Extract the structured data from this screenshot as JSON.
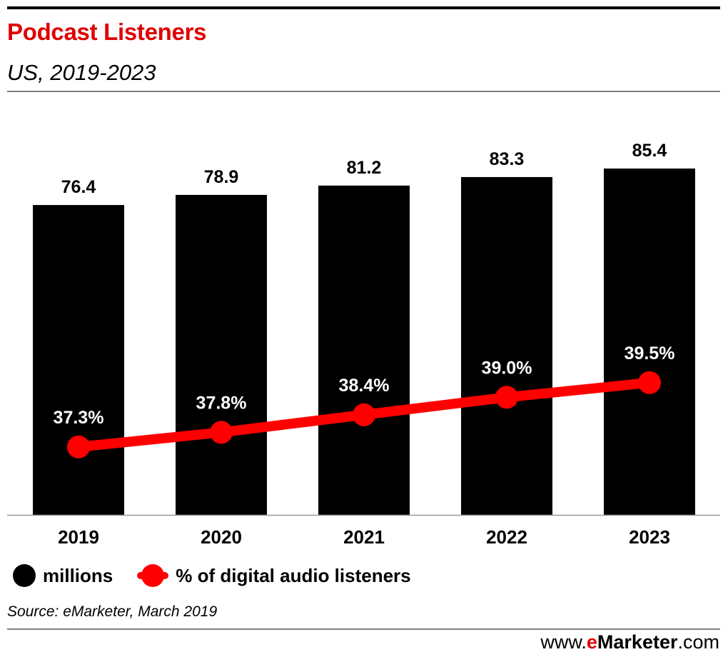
{
  "header": {
    "title": "Podcast Listeners",
    "subtitle": "US, 2019-2023"
  },
  "chart_data": {
    "type": "bar",
    "title": "Podcast Listeners",
    "subtitle": "US, 2019-2023",
    "categories": [
      "2019",
      "2020",
      "2021",
      "2022",
      "2023"
    ],
    "series": [
      {
        "name": "millions",
        "type": "bar",
        "values": [
          76.4,
          78.9,
          81.2,
          83.3,
          85.4
        ],
        "labels": [
          "76.4",
          "78.9",
          "81.2",
          "83.3",
          "85.4"
        ]
      },
      {
        "name": "% of digital audio listeners",
        "type": "line",
        "values": [
          37.3,
          37.8,
          38.4,
          39.0,
          39.5
        ],
        "labels": [
          "37.3%",
          "37.8%",
          "38.4%",
          "39.0%",
          "39.5%"
        ]
      }
    ],
    "xlabel": "",
    "ylabel": "",
    "bar_ylim": [
      0,
      85.4
    ],
    "line_ylim": [
      35.0,
      40.4
    ],
    "grid": false,
    "legend_position": "bottom-left"
  },
  "legend": {
    "millions": "millions",
    "pct": "% of digital audio listeners"
  },
  "colors": {
    "bar": "#000000",
    "line": "#ff0000",
    "title": "#e00000",
    "text": "#000000"
  },
  "footer": {
    "source": "Source: eMarketer, March 2019",
    "brand_prefix": "www.",
    "brand_e": "e",
    "brand_name": "Marketer",
    "brand_suffix": ".com"
  }
}
